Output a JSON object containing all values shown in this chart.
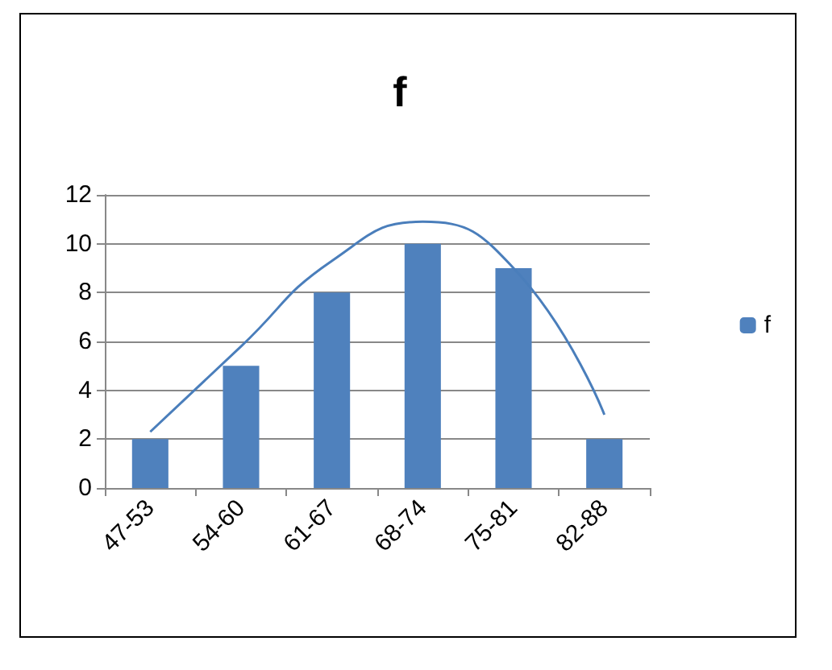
{
  "chart_data": {
    "type": "bar",
    "title": "f",
    "categories": [
      "47-53",
      "54-60",
      "61-67",
      "68-74",
      "75-81",
      "82-88"
    ],
    "series": [
      {
        "name": "f",
        "color": "#4f81bd",
        "values": [
          2,
          5,
          8,
          10,
          9,
          2
        ]
      },
      {
        "type": "line",
        "color": "#4a7ebb",
        "values": [
          2.3,
          5.8,
          9.3,
          10.9,
          9,
          3
        ]
      }
    ],
    "ylim": [
      0,
      12
    ],
    "yticks": [
      0,
      2,
      4,
      6,
      8,
      10,
      12
    ],
    "grid": "y",
    "legend": "right",
    "marker": "none"
  }
}
